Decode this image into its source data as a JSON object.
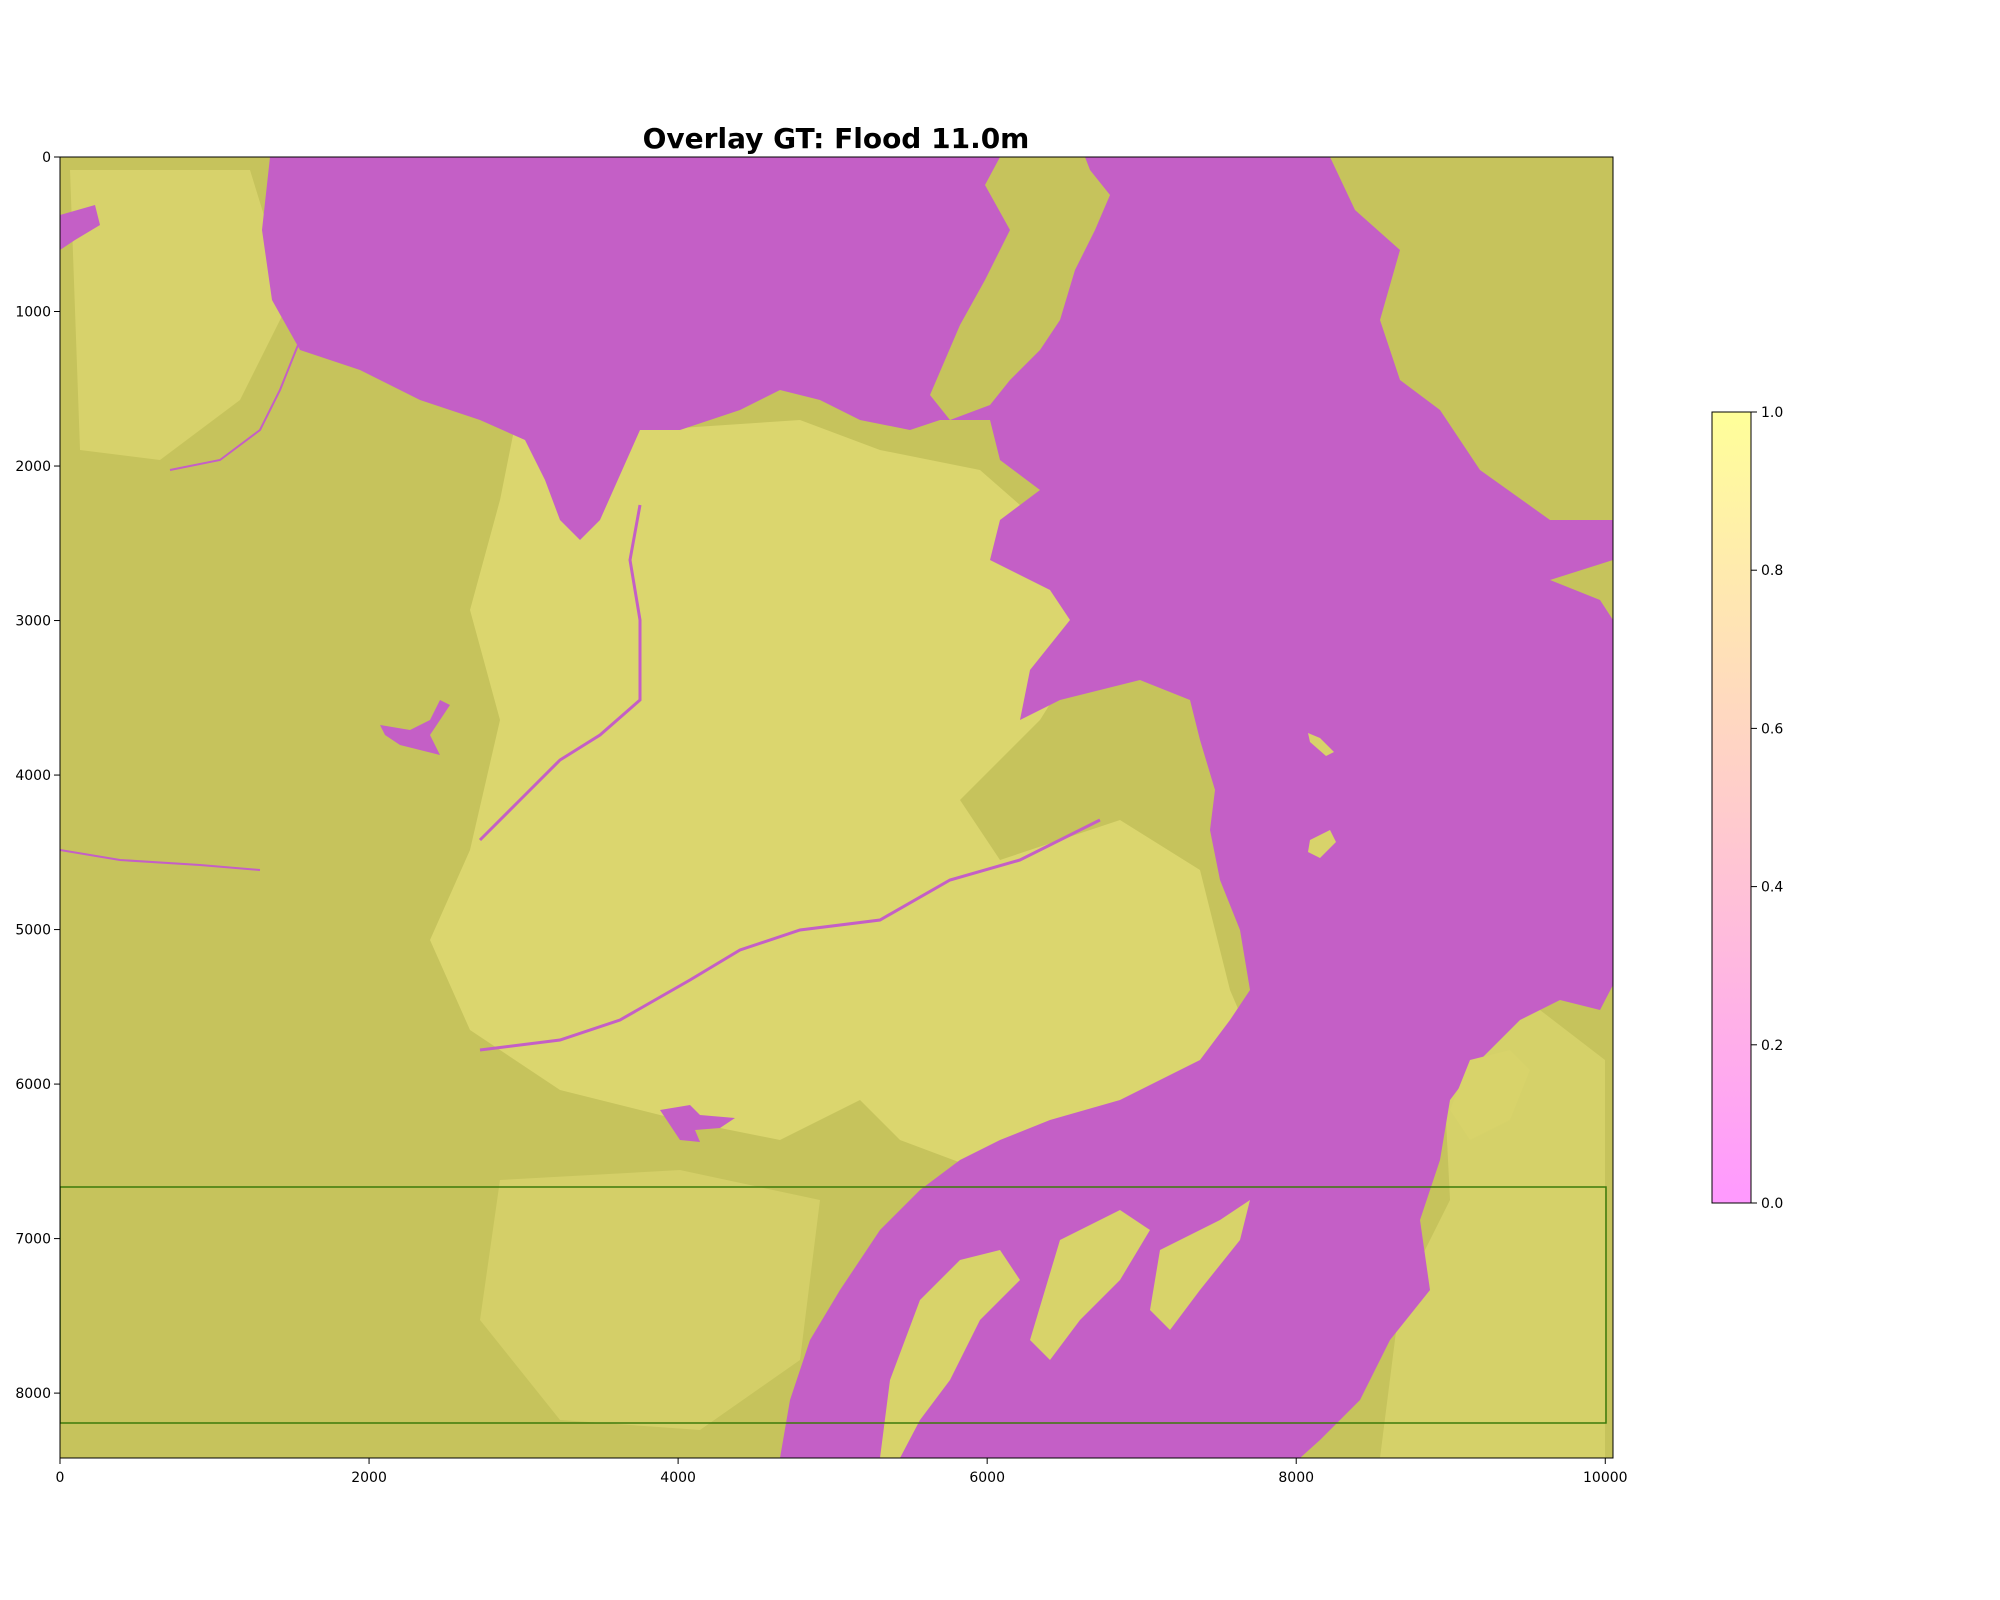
{
  "title": "Overlay GT: Flood 11.0m",
  "colors": {
    "land": "#c6c35c",
    "land_bright": "#e2dc74",
    "water": "#c45fc6",
    "box_stroke": "#3c7a0a",
    "colorbar_low": "#ff99ff",
    "colorbar_mid": "#ffcccc",
    "colorbar_high": "#ffff99"
  },
  "chart_data": {
    "type": "heatmap",
    "title": "Overlay GT: Flood 11.0m",
    "xlim": [
      0,
      10050
    ],
    "ylim": [
      8420,
      0
    ],
    "x_ticks": [
      0,
      2000,
      4000,
      6000,
      8000,
      10000
    ],
    "y_ticks": [
      0,
      1000,
      2000,
      3000,
      4000,
      5000,
      6000,
      7000,
      8000
    ],
    "colorbar": {
      "range": [
        0.0,
        1.0
      ],
      "ticks": [
        "0.0",
        "0.2",
        "0.4",
        "0.6",
        "0.8",
        "1.0"
      ]
    },
    "annotation_box": {
      "x0": 0,
      "x1": 10000,
      "y0": 6660,
      "y1": 8190
    }
  }
}
